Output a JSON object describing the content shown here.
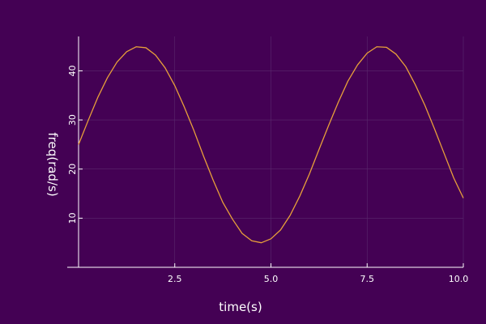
{
  "chart_data": {
    "type": "line",
    "title": "",
    "xlabel": "time(s)",
    "ylabel": "freq(rad/s)",
    "xlim": [
      0,
      10
    ],
    "ylim": [
      0,
      47
    ],
    "x_ticks": [
      2.5,
      5.0,
      7.5,
      10.0
    ],
    "x_tick_labels": [
      "2.5",
      "5.0",
      "7.5",
      "10.0"
    ],
    "y_ticks": [
      10,
      20,
      30,
      40
    ],
    "y_tick_labels": [
      "10",
      "20",
      "30",
      "40"
    ],
    "grid": true,
    "legend": "none",
    "colors": {
      "background": "#440154",
      "line": "#e8a03a",
      "axis": "#ffffff",
      "grid": "#5a2a6e"
    },
    "series": [
      {
        "x": [
          0,
          0.25,
          0.5,
          0.75,
          1.0,
          1.25,
          1.5,
          1.75,
          2.0,
          2.25,
          2.5,
          2.75,
          3.0,
          3.25,
          3.5,
          3.75,
          4.0,
          4.25,
          4.5,
          4.75,
          5.0,
          5.25,
          5.5,
          5.75,
          6.0,
          6.25,
          6.5,
          6.75,
          7.0,
          7.25,
          7.5,
          7.75,
          8.0,
          8.25,
          8.5,
          8.75,
          9.0,
          9.25,
          9.5,
          9.75,
          10.0
        ],
        "values": [
          25.0,
          29.9,
          34.6,
          38.6,
          41.8,
          43.9,
          44.9,
          44.7,
          43.2,
          40.6,
          37.0,
          32.6,
          27.8,
          22.6,
          17.7,
          13.2,
          9.8,
          6.9,
          5.4,
          5.0,
          5.8,
          7.6,
          10.6,
          14.5,
          19.0,
          24.0,
          28.9,
          33.6,
          37.9,
          41.2,
          43.6,
          44.9,
          44.8,
          43.4,
          40.9,
          37.2,
          33.0,
          28.2,
          23.2,
          18.2,
          14.1
        ]
      }
    ]
  }
}
